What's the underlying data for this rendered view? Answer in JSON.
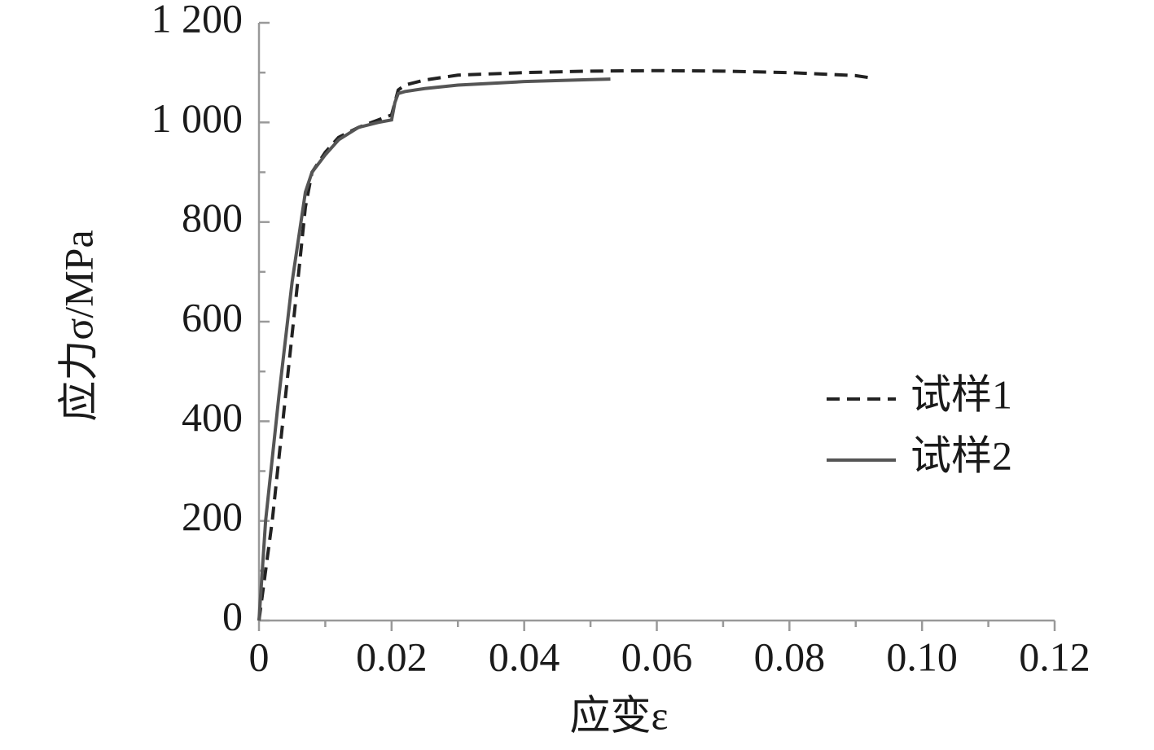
{
  "chart_data": {
    "type": "line",
    "xlabel": "应变ε",
    "ylabel": "应力σ/MPa",
    "xlim": [
      0,
      0.12
    ],
    "ylim": [
      0,
      1200
    ],
    "xticks": [
      0,
      0.02,
      0.04,
      0.06,
      0.08,
      {
        "value": 0.1,
        "label": "0.10"
      },
      0.12
    ],
    "yticks": [
      0,
      200,
      400,
      600,
      800,
      {
        "value": 1000,
        "label": "1 000"
      },
      {
        "value": 1200,
        "label": "1 200"
      }
    ],
    "xminorticks": [
      0.01,
      0.03,
      0.05,
      0.07,
      0.09,
      0.11
    ],
    "yminorticks": [
      100,
      300,
      500,
      700,
      900,
      1100
    ],
    "legend": "right",
    "series": [
      {
        "name": "试样1",
        "color": "#222222",
        "linestyle": "dashed",
        "x": [
          0,
          0.002,
          0.004,
          0.006,
          0.007,
          0.008,
          0.01,
          0.012,
          0.015,
          0.018,
          0.02,
          0.0205,
          0.021,
          0.022,
          0.025,
          0.03,
          0.04,
          0.05,
          0.06,
          0.07,
          0.08,
          0.09,
          0.092
        ],
        "values": [
          0,
          200,
          450,
          700,
          830,
          900,
          940,
          970,
          990,
          1005,
          1015,
          1040,
          1065,
          1075,
          1085,
          1095,
          1100,
          1103,
          1104,
          1103,
          1100,
          1094,
          1090
        ]
      },
      {
        "name": "试样2",
        "color": "#555555",
        "linestyle": "solid",
        "x": [
          0,
          0.0005,
          0.001,
          0.003,
          0.005,
          0.007,
          0.008,
          0.01,
          0.012,
          0.015,
          0.018,
          0.02,
          0.0205,
          0.021,
          0.022,
          0.025,
          0.03,
          0.04,
          0.05,
          0.053
        ],
        "values": [
          0,
          100,
          200,
          450,
          680,
          860,
          900,
          935,
          965,
          990,
          1000,
          1005,
          1040,
          1058,
          1062,
          1068,
          1075,
          1082,
          1086,
          1087
        ]
      }
    ]
  }
}
